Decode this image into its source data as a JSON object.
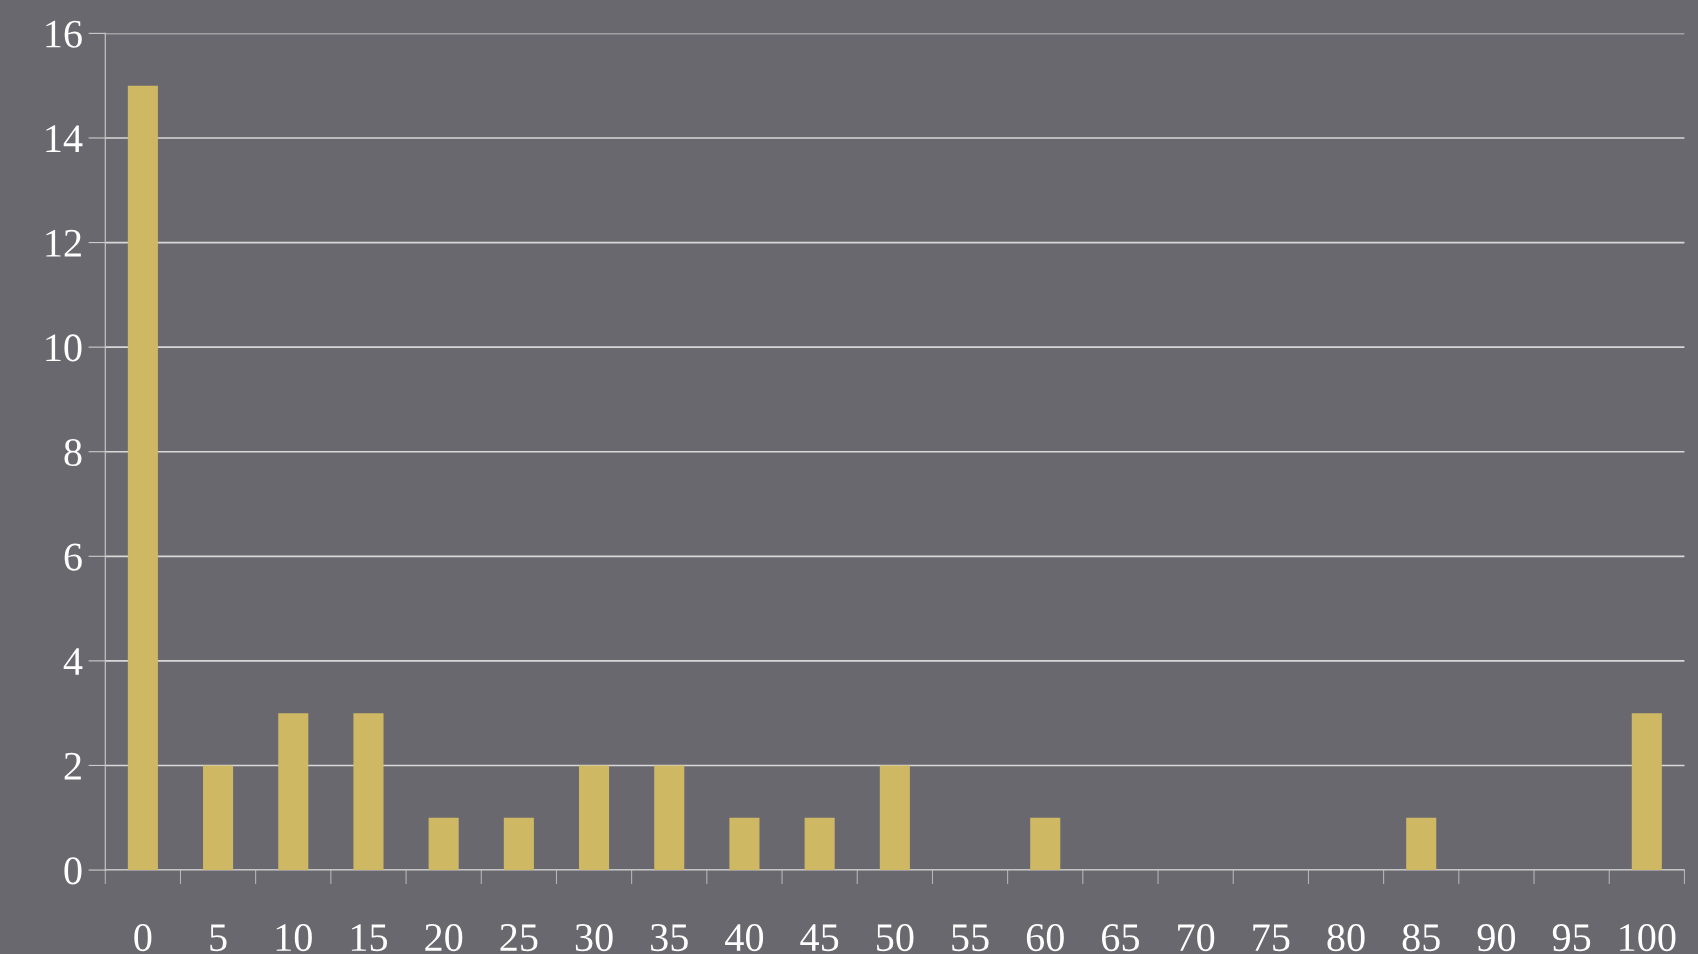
{
  "chart_data": {
    "type": "bar",
    "categories": [
      "0",
      "5",
      "10",
      "15",
      "20",
      "25",
      "30",
      "35",
      "40",
      "45",
      "50",
      "55",
      "60",
      "65",
      "70",
      "75",
      "80",
      "85",
      "90",
      "95",
      "100"
    ],
    "values": [
      15,
      2,
      3,
      3,
      1,
      1,
      2,
      2,
      1,
      1,
      2,
      0,
      1,
      0,
      0,
      0,
      0,
      1,
      0,
      0,
      3
    ],
    "color": "#cfb863",
    "ylim": [
      0,
      16
    ],
    "yticks": [
      0,
      2,
      4,
      6,
      8,
      10,
      12,
      14,
      16
    ],
    "grid": "y",
    "legend": false
  }
}
